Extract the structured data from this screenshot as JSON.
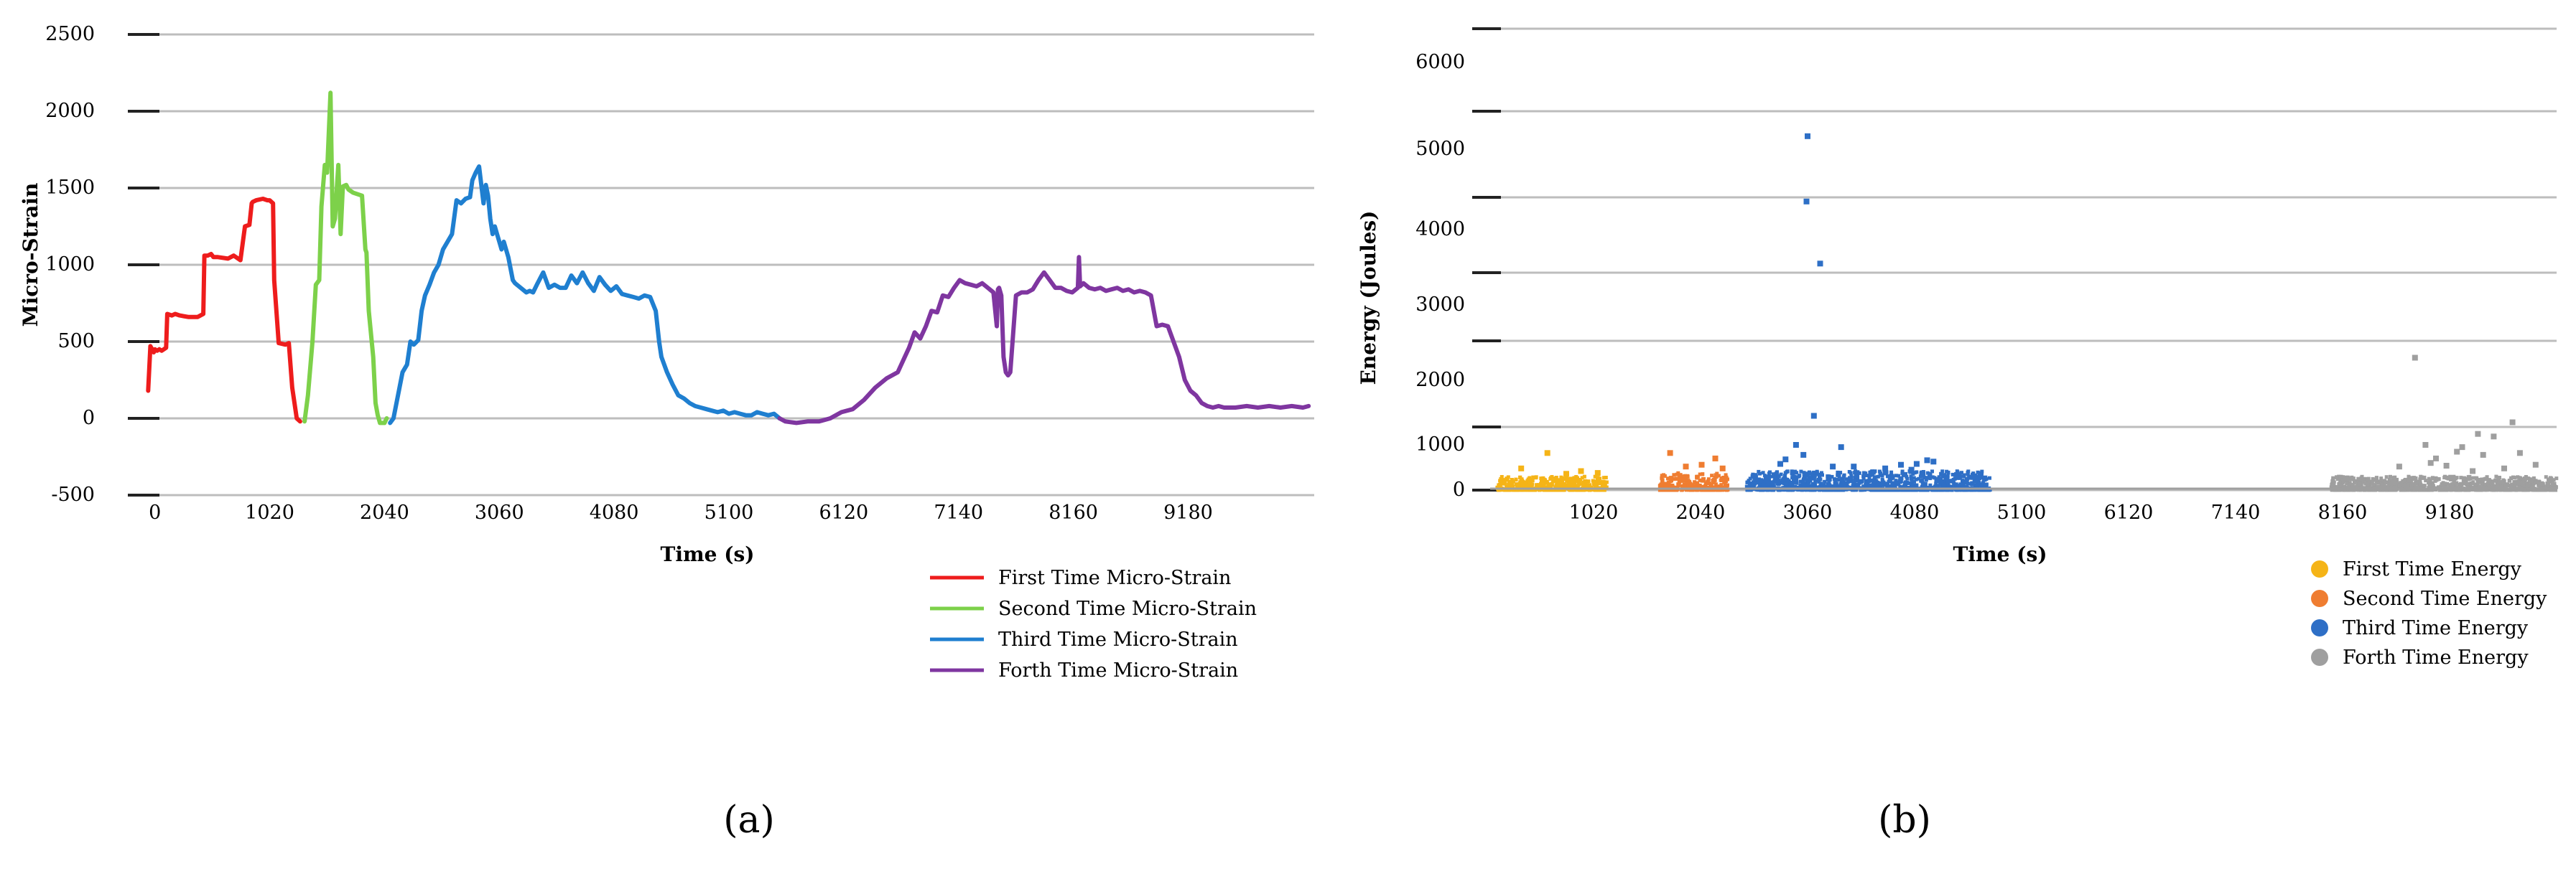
{
  "chart_data": [
    {
      "panel_label": "(a)",
      "type": "line",
      "xlabel": "Time (s)",
      "ylabel": "Micro-Strain",
      "xlim": [
        -100,
        10300
      ],
      "ylim": [
        -500,
        2500
      ],
      "xticks": [
        0,
        1020,
        2040,
        3060,
        4080,
        5100,
        6120,
        7140,
        8160,
        9180
      ],
      "yticks": [
        -500,
        0,
        500,
        1000,
        1500,
        2000,
        2500
      ],
      "grid": "horizontal",
      "legend_position": "bottom-right",
      "series": [
        {
          "name": "First Time Micro-Strain",
          "color": "#ee1c1c",
          "x": [
            -60,
            -40,
            -10,
            0,
            20,
            40,
            60,
            100,
            110,
            150,
            180,
            220,
            300,
            380,
            430,
            440,
            470,
            500,
            520,
            560,
            650,
            700,
            760,
            800,
            840,
            860,
            870,
            900,
            960,
            1000,
            1020,
            1050,
            1060,
            1100,
            1160,
            1190,
            1220,
            1260,
            1290
          ],
          "y": [
            180,
            470,
            430,
            450,
            440,
            450,
            440,
            460,
            680,
            670,
            680,
            670,
            660,
            660,
            680,
            1060,
            1060,
            1070,
            1050,
            1050,
            1040,
            1060,
            1030,
            1250,
            1260,
            1400,
            1410,
            1420,
            1430,
            1420,
            1420,
            1400,
            900,
            490,
            480,
            490,
            200,
            0,
            -20
          ]
        },
        {
          "name": "Second Time Micro-Strain",
          "color": "#7dd14a",
          "x": [
            1330,
            1360,
            1400,
            1430,
            1460,
            1480,
            1510,
            1530,
            1560,
            1580,
            1600,
            1630,
            1650,
            1670,
            1700,
            1720,
            1760,
            1800,
            1840,
            1870,
            1880,
            1900,
            1940,
            1960,
            1980,
            2000,
            2040,
            2060
          ],
          "y": [
            -20,
            150,
            500,
            870,
            900,
            1380,
            1650,
            1600,
            2120,
            1250,
            1300,
            1650,
            1200,
            1510,
            1520,
            1490,
            1470,
            1460,
            1450,
            1100,
            1080,
            700,
            400,
            100,
            20,
            -30,
            -30,
            0
          ]
        },
        {
          "name": "Third Time Micro-Strain",
          "color": "#1f7fd0",
          "x": [
            2090,
            2120,
            2160,
            2200,
            2240,
            2270,
            2300,
            2340,
            2370,
            2400,
            2440,
            2480,
            2520,
            2560,
            2600,
            2640,
            2680,
            2720,
            2760,
            2800,
            2820,
            2850,
            2880,
            2920,
            2940,
            2960,
            2980,
            3000,
            3020,
            3040,
            3060,
            3080,
            3100,
            3140,
            3180,
            3200,
            3250,
            3300,
            3330,
            3360,
            3400,
            3450,
            3500,
            3550,
            3600,
            3650,
            3700,
            3750,
            3800,
            3850,
            3900,
            3950,
            4000,
            4050,
            4100,
            4150,
            4200,
            4250,
            4300,
            4350,
            4400,
            4450,
            4480,
            4500,
            4550,
            4600,
            4650,
            4700,
            4750,
            4800,
            4850,
            4900,
            4950,
            5000,
            5050,
            5100,
            5150,
            5200,
            5250,
            5300,
            5350,
            5400,
            5450,
            5500,
            5550
          ],
          "y": [
            -30,
            0,
            150,
            300,
            350,
            500,
            480,
            510,
            700,
            800,
            870,
            950,
            1000,
            1100,
            1150,
            1200,
            1420,
            1400,
            1430,
            1440,
            1550,
            1600,
            1640,
            1400,
            1520,
            1450,
            1300,
            1200,
            1250,
            1200,
            1150,
            1100,
            1150,
            1050,
            900,
            880,
            850,
            820,
            830,
            820,
            880,
            950,
            850,
            870,
            850,
            850,
            930,
            880,
            950,
            880,
            830,
            920,
            870,
            830,
            860,
            810,
            800,
            790,
            780,
            800,
            790,
            700,
            500,
            400,
            300,
            220,
            150,
            130,
            100,
            80,
            70,
            60,
            50,
            40,
            50,
            30,
            40,
            30,
            20,
            20,
            40,
            30,
            20,
            30,
            0
          ]
        },
        {
          "name": "Forth Time Micro-Strain",
          "color": "#7f36a0",
          "x": [
            5550,
            5600,
            5700,
            5800,
            5900,
            6000,
            6100,
            6200,
            6300,
            6400,
            6500,
            6600,
            6650,
            6700,
            6750,
            6800,
            6850,
            6900,
            6950,
            7000,
            7050,
            7100,
            7150,
            7200,
            7250,
            7300,
            7350,
            7400,
            7450,
            7480,
            7490,
            7500,
            7520,
            7540,
            7560,
            7580,
            7600,
            7650,
            7700,
            7750,
            7800,
            7850,
            7900,
            7950,
            8000,
            8050,
            8100,
            8150,
            8200,
            8210,
            8220,
            8250,
            8300,
            8350,
            8400,
            8450,
            8500,
            8550,
            8600,
            8650,
            8700,
            8750,
            8800,
            8850,
            8900,
            8950,
            9000,
            9050,
            9100,
            9150,
            9200,
            9250,
            9300,
            9350,
            9400,
            9450,
            9500,
            9600,
            9700,
            9800,
            9900,
            10000,
            10100,
            10200,
            10250
          ],
          "y": [
            0,
            -20,
            -30,
            -20,
            -20,
            0,
            40,
            60,
            120,
            200,
            260,
            300,
            380,
            460,
            560,
            520,
            600,
            700,
            690,
            800,
            790,
            850,
            900,
            880,
            870,
            860,
            880,
            850,
            820,
            600,
            840,
            850,
            800,
            400,
            300,
            280,
            300,
            800,
            820,
            820,
            840,
            900,
            950,
            900,
            850,
            850,
            830,
            820,
            850,
            1050,
            860,
            880,
            850,
            840,
            850,
            830,
            840,
            850,
            830,
            840,
            820,
            830,
            820,
            800,
            600,
            610,
            600,
            500,
            400,
            250,
            180,
            150,
            100,
            80,
            70,
            80,
            70,
            70,
            80,
            70,
            80,
            70,
            80,
            70,
            80
          ]
        }
      ]
    },
    {
      "panel_label": "(b)",
      "type": "scatter",
      "xlabel": "Time (s)",
      "ylabel": "Energy (Joules)",
      "xlim": [
        0,
        10200
      ],
      "ylim": [
        0,
        6000
      ],
      "xticks": [
        1020,
        2040,
        3060,
        4080,
        5100,
        6120,
        7140,
        8160,
        9180
      ],
      "yticks": [
        0,
        1000,
        2000,
        3000,
        4000,
        5000,
        6000
      ],
      "grid": "horizontal",
      "legend_position": "bottom-right",
      "series": [
        {
          "name": "First Time Energy",
          "color": "#f5b417",
          "x_range": [
            100,
            1150
          ],
          "bulk_max": 300,
          "outliers": [
            [
              580,
              820
            ],
            [
              330,
              480
            ],
            [
              900,
              420
            ],
            [
              1060,
              380
            ],
            [
              760,
              360
            ]
          ]
        },
        {
          "name": "Second Time Energy",
          "color": "#ef7d31",
          "x_range": [
            1650,
            2300
          ],
          "bulk_max": 380,
          "outliers": [
            [
              1750,
              820
            ],
            [
              2050,
              560
            ],
            [
              2180,
              700
            ],
            [
              1900,
              520
            ],
            [
              2250,
              480
            ]
          ]
        },
        {
          "name": "Third Time Energy",
          "color": "#2e6fc6",
          "x_range": [
            2480,
            4800
          ],
          "bulk_max": 420,
          "outliers": [
            [
              3060,
              5150
            ],
            [
              3050,
              4350
            ],
            [
              3180,
              3550
            ],
            [
              3120,
              1450
            ],
            [
              2950,
              1000
            ],
            [
              3380,
              950
            ],
            [
              2800,
              580
            ],
            [
              2850,
              680
            ],
            [
              3020,
              780
            ],
            [
              3500,
              520
            ],
            [
              3950,
              560
            ],
            [
              4100,
              580
            ],
            [
              4200,
              660
            ],
            [
              4260,
              630
            ],
            [
              4050,
              450
            ],
            [
              3800,
              480
            ],
            [
              3300,
              520
            ]
          ]
        },
        {
          "name": "Forth Time Energy",
          "color": "#9f9f9f",
          "x_range": [
            8050,
            10200
          ],
          "bulk_max": 300,
          "outliers": [
            [
              8850,
              2300
            ],
            [
              9780,
              1350
            ],
            [
              9450,
              1170
            ],
            [
              9600,
              1130
            ],
            [
              8950,
              1000
            ],
            [
              9300,
              950
            ],
            [
              9250,
              850
            ],
            [
              9500,
              780
            ],
            [
              9850,
              820
            ],
            [
              10000,
              560
            ],
            [
              9050,
              700
            ],
            [
              9150,
              540
            ],
            [
              8700,
              520
            ],
            [
              9700,
              480
            ],
            [
              9000,
              600
            ],
            [
              9400,
              420
            ]
          ]
        }
      ]
    }
  ]
}
